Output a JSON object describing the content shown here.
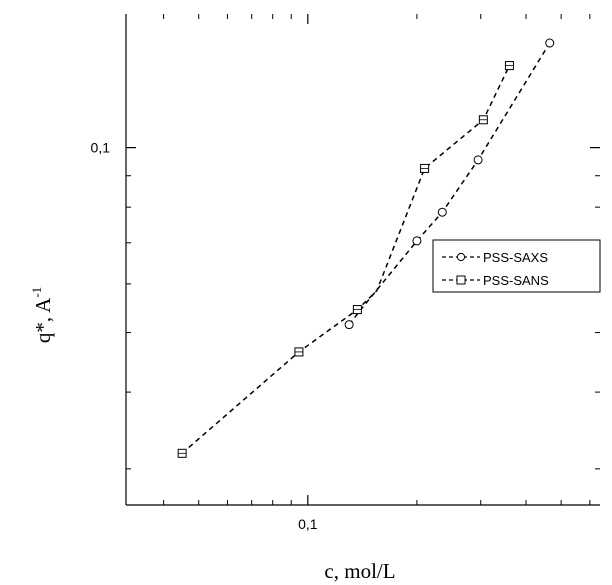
{
  "chart_data": {
    "type": "line",
    "xlabel": "c, mol/L",
    "ylabel_main": "q*, A",
    "ylabel_sup": "-1",
    "xscale": "log",
    "yscale": "log",
    "xlim": [
      0.0315,
      0.64
    ],
    "ylim": [
      0.0262,
      0.165
    ],
    "x_tick_labels": [
      {
        "value": 0.1,
        "label": "0,1"
      }
    ],
    "y_tick_labels": [
      {
        "value": 0.1,
        "label": "0,1"
      }
    ],
    "x_minor_ticks": [
      0.04,
      0.05,
      0.06,
      0.07,
      0.08,
      0.09,
      0.2,
      0.3,
      0.4,
      0.5,
      0.6
    ],
    "y_minor_ticks": [
      0.03,
      0.04,
      0.05,
      0.06,
      0.07,
      0.08,
      0.09
    ],
    "grid": false,
    "legend_position": "center-right",
    "series": [
      {
        "name": "PSS-SAXS",
        "marker": "circle",
        "x": [
          0.13,
          0.14,
          0.2,
          0.235,
          0.295,
          0.465
        ],
        "y": [
          0.0515,
          0.0545,
          0.0705,
          0.0785,
          0.0955,
          0.148
        ],
        "markers": [
          true,
          false,
          true,
          true,
          true,
          true
        ]
      },
      {
        "name": "PSS-SANS",
        "marker": "square",
        "x": [
          0.045,
          0.0945,
          0.137,
          0.155,
          0.21,
          0.305,
          0.36
        ],
        "y": [
          0.0318,
          0.0465,
          0.0545,
          0.0585,
          0.0925,
          0.111,
          0.136
        ],
        "markers": [
          true,
          true,
          true,
          false,
          true,
          true,
          true
        ]
      }
    ]
  }
}
